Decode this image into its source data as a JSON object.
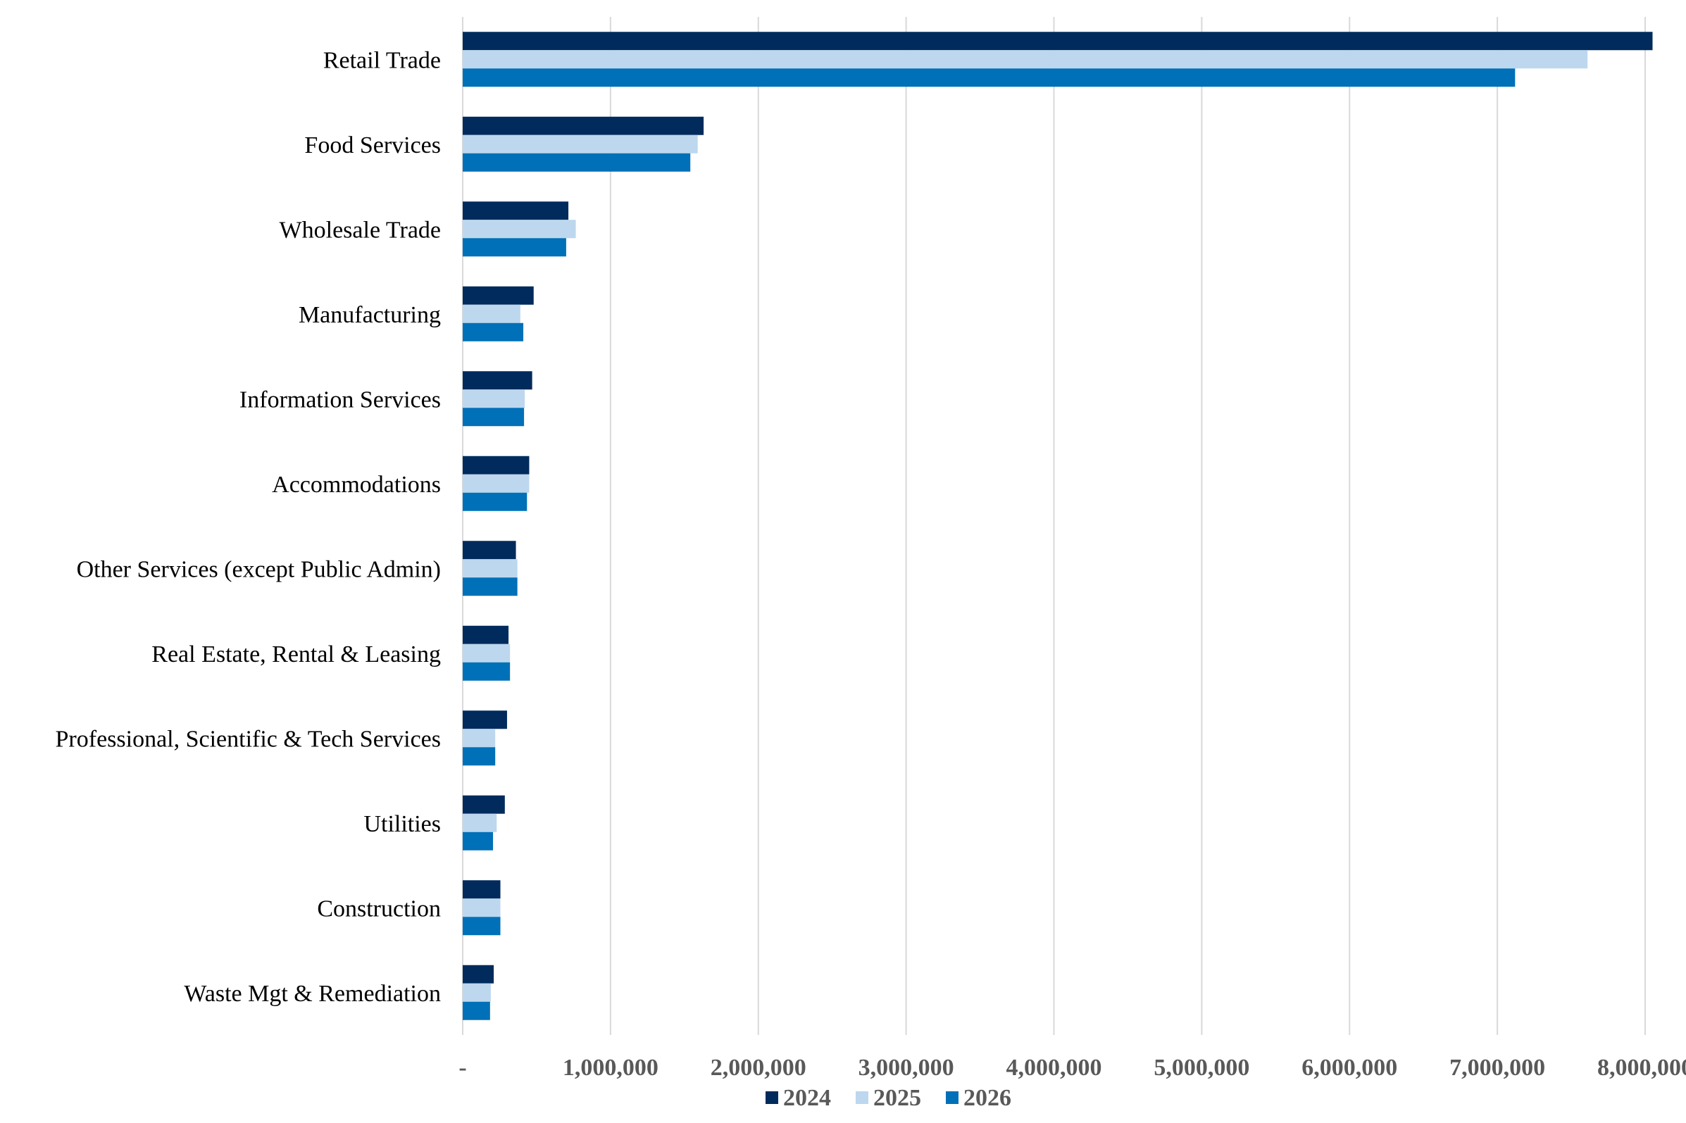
{
  "chart_data": {
    "type": "bar",
    "orientation": "horizontal",
    "categories": [
      "Retail Trade",
      "Food Services",
      "Wholesale Trade",
      "Manufacturing",
      "Information Services",
      "Accommodations",
      "Other Services (except Public Admin)",
      "Real Estate, Rental & Leasing",
      "Professional, Scientific & Tech Services",
      "Utilities",
      "Construction",
      "Waste Mgt & Remediation"
    ],
    "series": [
      {
        "name": "2024",
        "color": "#002b5c",
        "values": [
          8050000,
          1630000,
          715000,
          480000,
          470000,
          450000,
          360000,
          310000,
          300000,
          285000,
          255000,
          210000
        ]
      },
      {
        "name": "2025",
        "color": "#bdd7ee",
        "values": [
          7610000,
          1590000,
          765000,
          390000,
          420000,
          450000,
          370000,
          320000,
          220000,
          230000,
          255000,
          190000
        ]
      },
      {
        "name": "2026",
        "color": "#0070b8",
        "values": [
          7120000,
          1540000,
          700000,
          410000,
          415000,
          435000,
          370000,
          320000,
          220000,
          205000,
          255000,
          185000
        ]
      }
    ],
    "xlim": [
      0,
      8000000
    ],
    "xticks": [
      0,
      1000000,
      2000000,
      3000000,
      4000000,
      5000000,
      6000000,
      7000000,
      8000000
    ],
    "xtick_labels": [
      "-",
      "1,000,000",
      "2,000,000",
      "3,000,000",
      "4,000,000",
      "5,000,000",
      "6,000,000",
      "7,000,000",
      "8,000,000"
    ],
    "grid": "vertical",
    "legend": "bottom",
    "title": "",
    "xlabel": "",
    "ylabel": ""
  }
}
